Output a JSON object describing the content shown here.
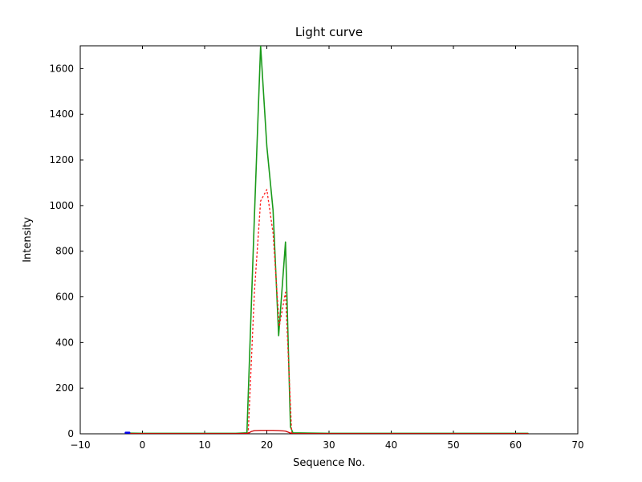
{
  "figure": {
    "title": "Light curve",
    "xlabel": "Sequence No.",
    "ylabel": "Intensity"
  },
  "chart_data": {
    "type": "line",
    "title": "Light curve",
    "xlabel": "Sequence No.",
    "ylabel": "Intensity",
    "xlim": [
      -10,
      70
    ],
    "ylim": [
      0,
      1700
    ],
    "xticks": [
      -10,
      0,
      10,
      20,
      30,
      40,
      50,
      60,
      70
    ],
    "yticks": [
      0,
      200,
      400,
      600,
      800,
      1000,
      1200,
      1400,
      1600
    ],
    "grid": false,
    "legend": "none",
    "background": "#ffffff",
    "axis_color": "#000000",
    "series": [
      {
        "name": "green-solid-lightcurve",
        "color": "#1a9a1a",
        "style": "solid",
        "width": 1.6,
        "x": [
          -2,
          0,
          5,
          10,
          15,
          16.8,
          18,
          19,
          20,
          21,
          21.9,
          23,
          23.8,
          24.2,
          30,
          40,
          50,
          62
        ],
        "y": [
          3,
          2,
          2,
          2,
          2,
          4,
          950,
          1700,
          1260,
          980,
          430,
          840,
          30,
          4,
          2,
          2,
          2,
          2
        ]
      },
      {
        "name": "red-dotted-lightcurve",
        "color": "#ff2222",
        "style": "dotted",
        "width": 1.4,
        "x": [
          17,
          18,
          19,
          20,
          21,
          22,
          23,
          24
        ],
        "y": [
          0,
          620,
          1020,
          1070,
          880,
          470,
          620,
          0
        ]
      },
      {
        "name": "red-solid-baseline",
        "color": "#cc0000",
        "style": "solid",
        "width": 1.3,
        "x": [
          -2,
          0,
          5,
          10,
          15,
          17,
          17.5,
          18,
          19,
          20,
          21,
          22,
          23,
          23.8,
          24.2,
          30,
          40,
          50,
          62
        ],
        "y": [
          1,
          1,
          1,
          1,
          1,
          2,
          10,
          14,
          15,
          15,
          15,
          14,
          12,
          3,
          1,
          1,
          1,
          1,
          1
        ]
      },
      {
        "name": "blue-solid-segment",
        "color": "#0000ee",
        "style": "solid",
        "width": 2.5,
        "x": [
          -2.7,
          -2.1
        ],
        "y": [
          5,
          5
        ]
      }
    ],
    "layout": {
      "plot_left": 100,
      "plot_top": 57,
      "plot_right": 720,
      "plot_bottom": 540,
      "tick_length": 4,
      "title_fontsize": 15,
      "label_fontsize": 13,
      "tick_fontsize": 12
    }
  }
}
